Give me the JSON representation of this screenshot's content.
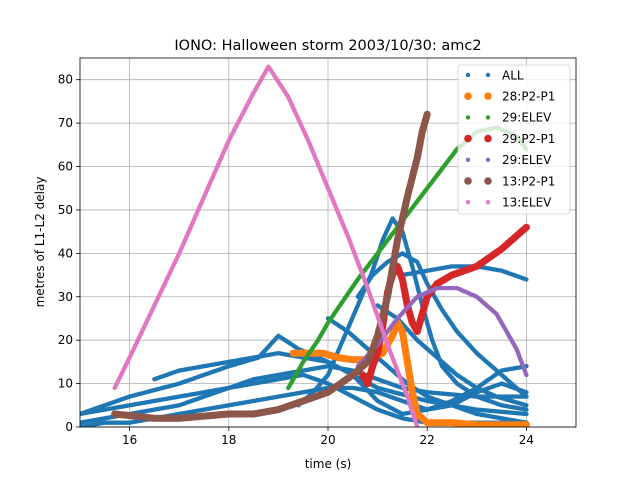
{
  "chart_data": {
    "type": "scatter",
    "title": "IONO: Halloween storm 2003/10/30: amc2",
    "xlabel": "time (s)",
    "ylabel": "metres of L1-L2 delay",
    "xlim": [
      15,
      25
    ],
    "ylim": [
      0,
      85
    ],
    "x_ticks": [
      16,
      18,
      20,
      22,
      24
    ],
    "y_ticks": [
      0,
      10,
      20,
      30,
      40,
      50,
      60,
      70,
      80
    ],
    "grid": true,
    "legend_position": "top-right",
    "series": [
      {
        "name": "ALL",
        "color": "#1f77b4",
        "marker_size": "small",
        "tracks": [
          [
            [
              15.0,
              3
            ],
            [
              15.5,
              4
            ],
            [
              16,
              5
            ],
            [
              16.5,
              6
            ],
            [
              17,
              7
            ],
            [
              17.5,
              8
            ],
            [
              18,
              9
            ],
            [
              18.5,
              10
            ],
            [
              19,
              11
            ],
            [
              19.5,
              12
            ],
            [
              20,
              10
            ],
            [
              20.5,
              7
            ],
            [
              21,
              4
            ],
            [
              21.5,
              2
            ],
            [
              22,
              1
            ],
            [
              23,
              1
            ],
            [
              24,
              1
            ]
          ],
          [
            [
              15.0,
              1
            ],
            [
              15.5,
              2
            ],
            [
              16,
              3
            ],
            [
              16.5,
              4
            ],
            [
              17,
              5
            ],
            [
              17.5,
              7
            ],
            [
              18,
              9
            ],
            [
              18.5,
              11
            ],
            [
              19,
              12
            ],
            [
              19.5,
              13
            ],
            [
              20,
              14
            ],
            [
              20.5,
              13
            ],
            [
              21,
              11
            ],
            [
              21.5,
              9
            ],
            [
              22,
              8
            ],
            [
              23,
              7
            ],
            [
              24,
              7
            ]
          ],
          [
            [
              15.0,
              0
            ],
            [
              15.5,
              1
            ],
            [
              16,
              1
            ],
            [
              16.5,
              2
            ],
            [
              17,
              3
            ],
            [
              17.5,
              4
            ],
            [
              18,
              5
            ],
            [
              18.5,
              6
            ],
            [
              19,
              7
            ],
            [
              19.5,
              8
            ],
            [
              20,
              9
            ],
            [
              20.5,
              9
            ],
            [
              21,
              8
            ],
            [
              21.5,
              6
            ],
            [
              22,
              4
            ],
            [
              22.5,
              5
            ],
            [
              23,
              8
            ],
            [
              23.5,
              10
            ],
            [
              24,
              8
            ]
          ],
          [
            [
              16.5,
              11
            ],
            [
              17,
              13
            ],
            [
              17.5,
              14
            ],
            [
              18,
              15
            ],
            [
              18.5,
              16
            ],
            [
              19,
              17
            ],
            [
              19.5,
              16
            ],
            [
              20,
              15
            ],
            [
              20.5,
              12
            ],
            [
              21,
              6
            ],
            [
              21.5,
              3
            ],
            [
              22,
              4
            ],
            [
              22.5,
              6
            ],
            [
              23,
              9
            ],
            [
              23.5,
              13
            ],
            [
              24,
              14
            ]
          ],
          [
            [
              19.4,
              5
            ],
            [
              19.7,
              8
            ],
            [
              20,
              12
            ],
            [
              20.3,
              20
            ],
            [
              20.6,
              28
            ],
            [
              20.9,
              36
            ],
            [
              21.1,
              43
            ],
            [
              21.3,
              48
            ],
            [
              21.5,
              45
            ],
            [
              21.7,
              37
            ],
            [
              21.9,
              28
            ],
            [
              22.1,
              20
            ],
            [
              22.3,
              14
            ],
            [
              22.6,
              10
            ],
            [
              23,
              7
            ],
            [
              23.5,
              5
            ],
            [
              24,
              4
            ]
          ],
          [
            [
              20.6,
              30
            ],
            [
              20.9,
              35
            ],
            [
              21.2,
              38
            ],
            [
              21.5,
              40
            ],
            [
              21.8,
              38
            ],
            [
              22,
              33
            ],
            [
              22.3,
              27
            ],
            [
              22.6,
              22
            ],
            [
              23,
              17
            ],
            [
              23.4,
              13
            ],
            [
              23.8,
              9
            ],
            [
              24,
              7
            ]
          ],
          [
            [
              20,
              25
            ],
            [
              20.4,
              22
            ],
            [
              20.8,
              18
            ],
            [
              21.2,
              14
            ],
            [
              21.6,
              10
            ],
            [
              22,
              7
            ],
            [
              22.5,
              5
            ],
            [
              23,
              3
            ],
            [
              23.5,
              2
            ],
            [
              24,
              1
            ]
          ],
          [
            [
              21,
              28
            ],
            [
              21.4,
              25
            ],
            [
              21.8,
              20
            ],
            [
              22.2,
              16
            ],
            [
              22.6,
              12
            ],
            [
              23,
              9
            ],
            [
              23.4,
              7
            ],
            [
              24,
              5
            ]
          ],
          [
            [
              21.5,
              35
            ],
            [
              22,
              36
            ],
            [
              22.5,
              37
            ],
            [
              23,
              37
            ],
            [
              23.5,
              36
            ],
            [
              24,
              34
            ]
          ],
          [
            [
              15,
              3
            ],
            [
              16,
              7
            ],
            [
              17,
              10
            ],
            [
              18,
              14
            ],
            [
              18.6,
              16
            ],
            [
              19,
              21
            ],
            [
              19.4,
              18
            ],
            [
              20,
              15
            ],
            [
              20.5,
              12
            ],
            [
              21,
              9
            ],
            [
              22,
              6
            ],
            [
              23,
              4
            ],
            [
              24,
              3
            ]
          ]
        ]
      },
      {
        "name": "28:P2-P1",
        "color": "#ff7f0e",
        "marker_size": "large",
        "points": [
          [
            19.3,
            17
          ],
          [
            19.6,
            17
          ],
          [
            19.9,
            17
          ],
          [
            20.2,
            16
          ],
          [
            20.5,
            15.5
          ],
          [
            20.8,
            15.5
          ],
          [
            21.1,
            17
          ],
          [
            21.3,
            21
          ],
          [
            21.4,
            24
          ],
          [
            21.5,
            22
          ],
          [
            21.6,
            15
          ],
          [
            21.7,
            8
          ],
          [
            21.8,
            3
          ],
          [
            22,
            1
          ],
          [
            22.5,
            1
          ],
          [
            23,
            0.5
          ],
          [
            23.5,
            0.5
          ],
          [
            24,
            0.5
          ]
        ]
      },
      {
        "name": "29:ELEV",
        "color": "#2ca02c",
        "marker_size": "small",
        "points": [
          [
            19.2,
            9
          ],
          [
            19.5,
            15
          ],
          [
            19.8,
            20
          ],
          [
            20,
            24
          ],
          [
            20.3,
            29
          ],
          [
            20.6,
            34
          ],
          [
            21,
            40
          ],
          [
            21.4,
            46
          ],
          [
            21.8,
            52
          ],
          [
            22.2,
            58
          ],
          [
            22.6,
            64
          ],
          [
            23,
            68
          ],
          [
            23.4,
            69
          ],
          [
            23.8,
            67
          ],
          [
            24,
            64
          ]
        ]
      },
      {
        "name": "29:P2-P1",
        "color": "#d62728",
        "marker_size": "large",
        "points": [
          [
            20.7,
            12
          ],
          [
            20.8,
            10
          ],
          [
            20.9,
            14
          ],
          [
            21,
            17
          ],
          [
            21.1,
            23
          ],
          [
            21.2,
            31
          ],
          [
            21.3,
            35
          ],
          [
            21.4,
            37
          ],
          [
            21.5,
            34
          ],
          [
            21.6,
            28
          ],
          [
            21.7,
            24
          ],
          [
            21.8,
            22
          ],
          [
            21.9,
            26
          ],
          [
            22,
            30
          ],
          [
            22.2,
            33
          ],
          [
            22.5,
            35
          ],
          [
            23,
            37
          ],
          [
            23.5,
            41
          ],
          [
            24,
            46
          ]
        ]
      },
      {
        "name": "29:ELEV",
        "color": "#9467bd",
        "marker_size": "small",
        "points": [
          [
            20.6,
            14
          ],
          [
            21,
            19
          ],
          [
            21.4,
            25
          ],
          [
            21.8,
            30
          ],
          [
            22.2,
            32
          ],
          [
            22.6,
            32
          ],
          [
            23,
            30
          ],
          [
            23.4,
            26
          ],
          [
            23.8,
            18
          ],
          [
            24,
            12
          ]
        ]
      },
      {
        "name": "13:P2-P1",
        "color": "#8c564b",
        "marker_size": "large",
        "points": [
          [
            15.7,
            3
          ],
          [
            16.5,
            2
          ],
          [
            17,
            2
          ],
          [
            18,
            3
          ],
          [
            18.5,
            3
          ],
          [
            19,
            4
          ],
          [
            19.5,
            6
          ],
          [
            20,
            8
          ],
          [
            20.5,
            12
          ],
          [
            20.8,
            15
          ],
          [
            21,
            21
          ],
          [
            21.2,
            30
          ],
          [
            21.4,
            43
          ],
          [
            21.6,
            53
          ],
          [
            21.8,
            62
          ],
          [
            21.9,
            68
          ],
          [
            22,
            72
          ]
        ]
      },
      {
        "name": "13:ELEV",
        "color": "#e377c2",
        "marker_size": "small",
        "points": [
          [
            15.7,
            9
          ],
          [
            16,
            16
          ],
          [
            16.5,
            28
          ],
          [
            17,
            40
          ],
          [
            17.5,
            53
          ],
          [
            18,
            66
          ],
          [
            18.5,
            77
          ],
          [
            18.8,
            83
          ],
          [
            19.2,
            76
          ],
          [
            19.6,
            66
          ],
          [
            20,
            55
          ],
          [
            20.4,
            44
          ],
          [
            20.8,
            32
          ],
          [
            21.2,
            19
          ],
          [
            21.6,
            7
          ],
          [
            21.8,
            0
          ]
        ]
      }
    ]
  }
}
